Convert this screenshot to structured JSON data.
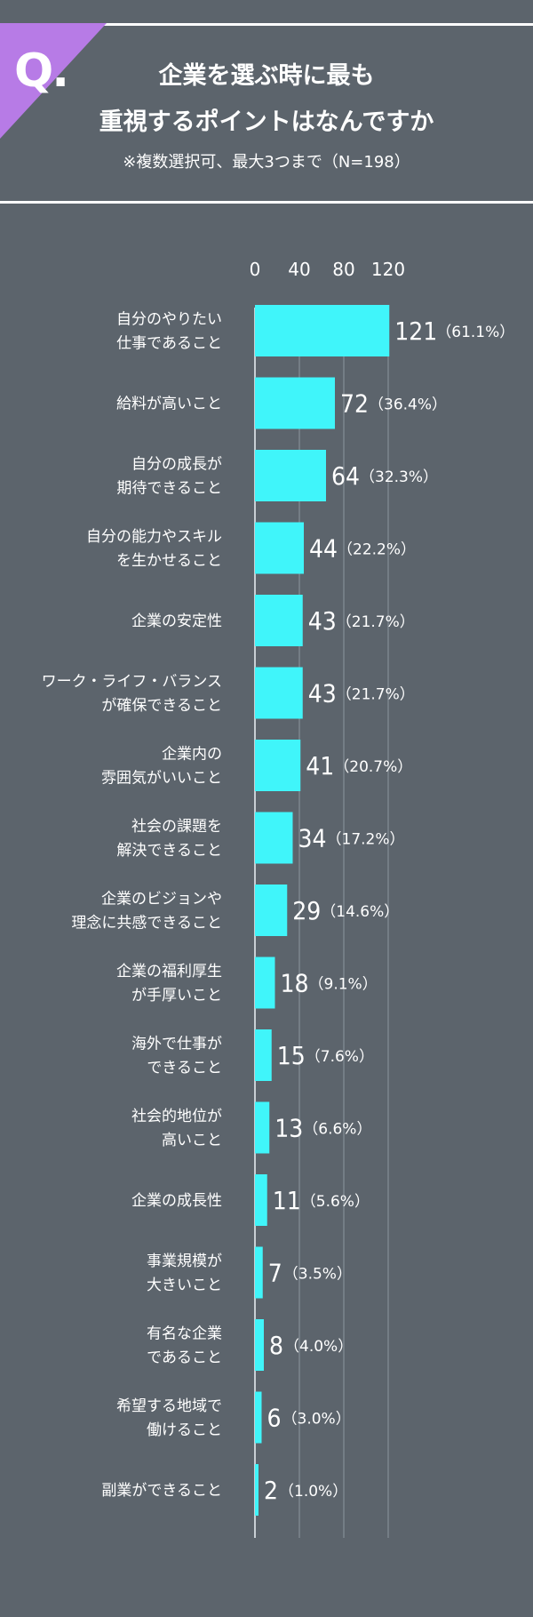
{
  "header": {
    "q_label": "Q.",
    "title_line1": "企業を選ぶ時に最も",
    "title_line2": "重視するポイントはなんですか",
    "note": "※複数選択可、最大3つまで（N=198）"
  },
  "colors": {
    "background": "#5c646c",
    "bar": "#40f5fa",
    "accent": "#b77be6",
    "text": "#ffffff",
    "axis": "#c9cfd4",
    "grid": "#7c858d"
  },
  "chart_data": {
    "type": "bar",
    "orientation": "horizontal",
    "title": "",
    "xlabel": "",
    "ylabel": "",
    "xlim": [
      0,
      120
    ],
    "xticks": [
      "0",
      "40",
      "80",
      "120"
    ],
    "grid": true,
    "categories": [
      [
        "自分のやりたい",
        "仕事であること"
      ],
      [
        "給料が高いこと"
      ],
      [
        "自分の成長が",
        "期待できること"
      ],
      [
        "自分の能力やスキル",
        "を生かせること"
      ],
      [
        "企業の安定性"
      ],
      [
        "ワーク・ライフ・バランス",
        "が確保できること"
      ],
      [
        "企業内の",
        "雰囲気がいいこと"
      ],
      [
        "社会の課題を",
        "解決できること"
      ],
      [
        "企業のビジョンや",
        "理念に共感できること"
      ],
      [
        "企業の福利厚生",
        "が手厚いこと"
      ],
      [
        "海外で仕事が",
        "できること"
      ],
      [
        "社会的地位が",
        "高いこと"
      ],
      [
        "企業の成長性"
      ],
      [
        "事業規模が",
        "大きいこと"
      ],
      [
        "有名な企業",
        "であること"
      ],
      [
        "希望する地域で",
        "働けること"
      ],
      [
        "副業ができること"
      ]
    ],
    "values": [
      121,
      72,
      64,
      44,
      43,
      43,
      41,
      34,
      29,
      18,
      15,
      13,
      11,
      7,
      8,
      6,
      2
    ],
    "percent_labels": [
      "（61.1%）",
      "（36.4%）",
      "（32.3%）",
      "（22.2%）",
      "（21.7%）",
      "（21.7%）",
      "（20.7%）",
      "（17.2%）",
      "（14.6%）",
      "（9.1%）",
      "（7.6%）",
      "（6.6%）",
      "（5.6%）",
      "（3.5%）",
      "（4.0%）",
      "（3.0%）",
      "（1.0%）"
    ]
  }
}
